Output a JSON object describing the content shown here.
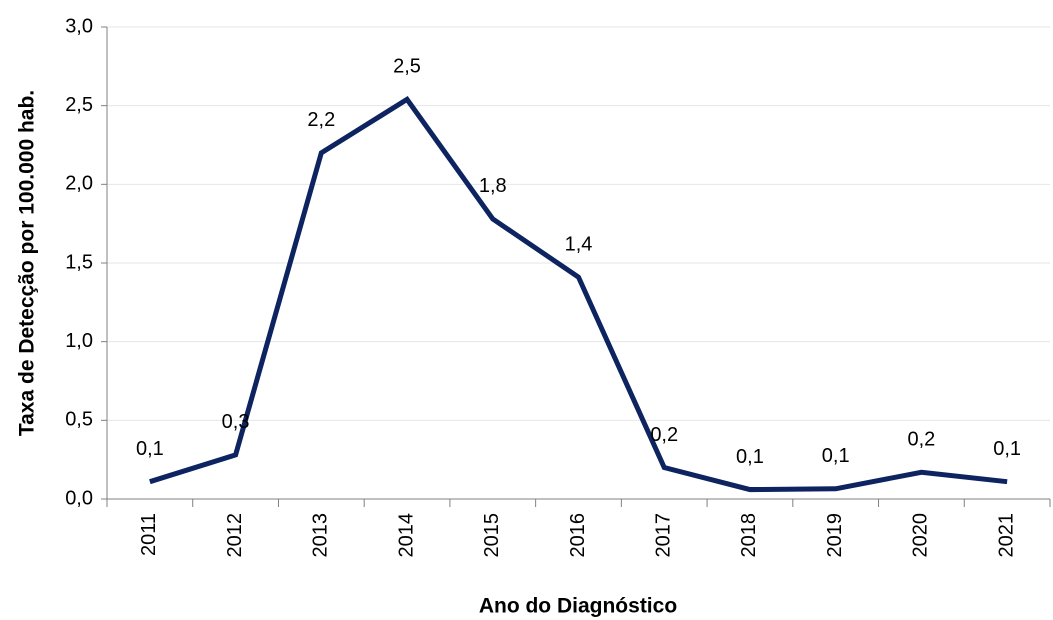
{
  "chart_data": {
    "type": "line",
    "y_label": "Taxa de Detecção por 100.000 hab.",
    "x_label": "Ano do Diagnóstico",
    "categories": [
      "2011",
      "2012",
      "2013",
      "2014",
      "2015",
      "2016",
      "2017",
      "2018",
      "2019",
      "2020",
      "2021"
    ],
    "series": [
      {
        "color": "#0d2461",
        "values": [
          0.11,
          0.28,
          2.2,
          2.54,
          1.78,
          1.41,
          0.2,
          0.06,
          0.065,
          0.17,
          0.11
        ],
        "value_labels": [
          "0,1",
          "0,3",
          "2,2",
          "2,5",
          "1,8",
          "1,4",
          "0,2",
          "0,1",
          "0,1",
          "0,2",
          "0,1"
        ]
      }
    ],
    "ylim": [
      0,
      3
    ],
    "yticks": [
      {
        "value": 0,
        "label": "0,0"
      },
      {
        "value": 0.5,
        "label": "0,5"
      },
      {
        "value": 1,
        "label": "1,0"
      },
      {
        "value": 1.5,
        "label": "1,5"
      },
      {
        "value": 2,
        "label": "2,0"
      },
      {
        "value": 2.5,
        "label": "2,5"
      },
      {
        "value": 3,
        "label": "3,0"
      }
    ],
    "grid": true
  }
}
